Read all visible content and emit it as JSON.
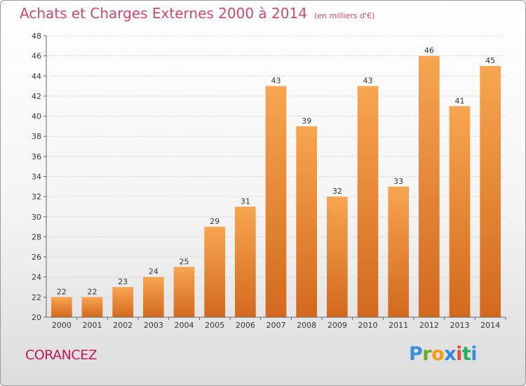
{
  "header": {
    "title": "Achats et Charges Externes 2000 à 2014",
    "subtitle": "(en milliers d'€)"
  },
  "footer": {
    "town": "CORANCEZ",
    "logo_letters": [
      {
        "ch": "P",
        "color": "#3a8fd9"
      },
      {
        "ch": "r",
        "color": "#6aaa2a"
      },
      {
        "ch": "o",
        "color": "#f39c12"
      },
      {
        "ch": "x",
        "color": "#2e86de"
      },
      {
        "ch": "i",
        "color": "#e74c3c"
      },
      {
        "ch": "t",
        "color": "#27ae60"
      },
      {
        "ch": "i",
        "color": "#3a8fd9"
      }
    ]
  },
  "chart_data": {
    "type": "bar",
    "title": "Achats et Charges Externes 2000 à 2014",
    "subtitle": "(en milliers d'€)",
    "categories": [
      "2000",
      "2001",
      "2002",
      "2003",
      "2004",
      "2005",
      "2006",
      "2007",
      "2008",
      "2009",
      "2010",
      "2011",
      "2012",
      "2013",
      "2014"
    ],
    "values": [
      22,
      22,
      23,
      24,
      25,
      29,
      31,
      43,
      39,
      32,
      43,
      33,
      46,
      41,
      45
    ],
    "ylim": [
      20,
      48
    ],
    "yticks": [
      20,
      22,
      24,
      26,
      28,
      30,
      32,
      34,
      36,
      38,
      40,
      42,
      44,
      46,
      48
    ],
    "grid": true,
    "bar_color_top": "#f7a550",
    "bar_color_bottom": "#d2691e"
  }
}
